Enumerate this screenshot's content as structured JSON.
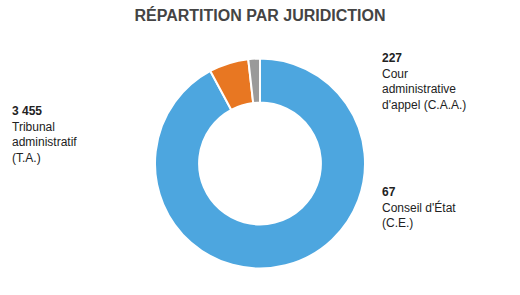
{
  "chart_data": {
    "type": "donut",
    "title": "RÉPARTITION PAR JURIDICTION",
    "categories": [
      "Tribunal administratif (T.A.)",
      "Cour administrative d'appel (C.A.A.)",
      "Conseil d'État (C.E.)"
    ],
    "values": [
      3455,
      227,
      67
    ],
    "value_labels": [
      "3 455",
      "227",
      "67"
    ],
    "colors": [
      "#4da6df",
      "#e87722",
      "#9a9a9a"
    ],
    "legend": false
  }
}
